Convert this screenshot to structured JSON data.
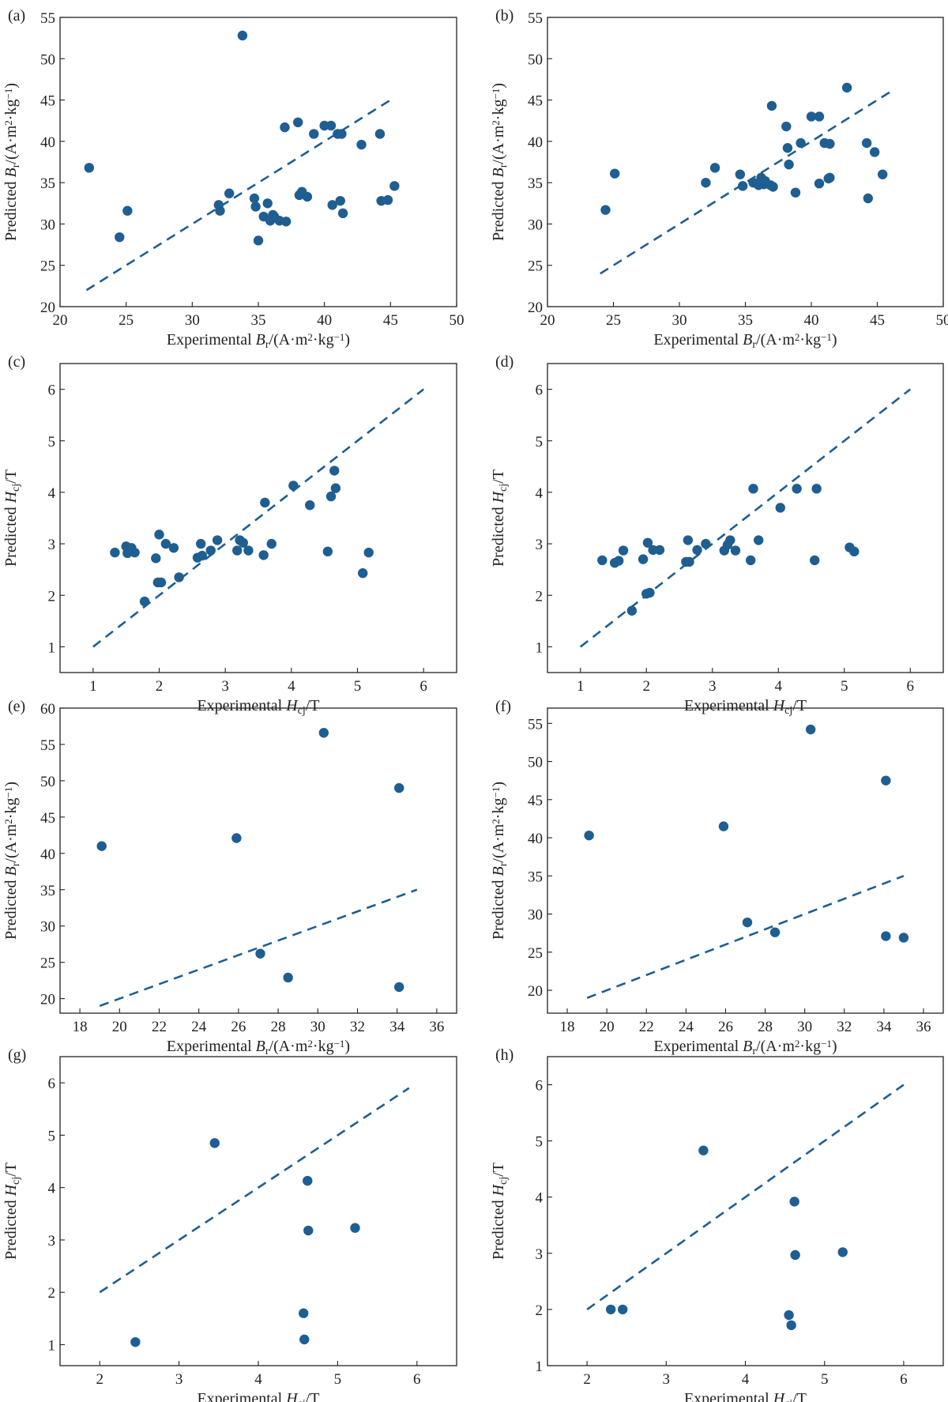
{
  "colors": {
    "points": "#1f5e91",
    "reference_line": "#1f5e91",
    "axes": "#222222"
  },
  "chart_data": [
    {
      "panel_label": "(a)",
      "type": "scatter",
      "xlabel": {
        "pre": "Experimental ",
        "sym": "B",
        "sub": "r",
        "post": "/(A·m",
        "sup1": "2",
        "post2": "·kg",
        "sup2": "−1",
        "post3": ")"
      },
      "ylabel": {
        "pre": "Predicted ",
        "sym": "B",
        "sub": "r",
        "post": "/(A·m",
        "sup1": "2",
        "post2": "·kg",
        "sup2": "−1",
        "post3": ")"
      },
      "xlim": [
        20,
        50
      ],
      "ylim": [
        20,
        55
      ],
      "xticks": [
        20,
        25,
        30,
        35,
        40,
        45,
        50
      ],
      "yticks": [
        20,
        25,
        30,
        35,
        40,
        45,
        50,
        55
      ],
      "reference_line": {
        "x": [
          22,
          45.3
        ],
        "y": [
          22,
          45.3
        ]
      },
      "points": [
        [
          22.2,
          36.8
        ],
        [
          24.5,
          28.4
        ],
        [
          25.1,
          31.6
        ],
        [
          32.0,
          32.3
        ],
        [
          32.1,
          31.6
        ],
        [
          32.8,
          33.7
        ],
        [
          33.8,
          52.8
        ],
        [
          34.7,
          33.1
        ],
        [
          34.8,
          32.1
        ],
        [
          35.0,
          28.0
        ],
        [
          35.4,
          30.9
        ],
        [
          35.7,
          32.5
        ],
        [
          35.9,
          30.4
        ],
        [
          36.1,
          31.1
        ],
        [
          36.2,
          30.9
        ],
        [
          36.6,
          30.4
        ],
        [
          37.0,
          41.7
        ],
        [
          37.1,
          30.3
        ],
        [
          38.0,
          42.3
        ],
        [
          38.1,
          33.5
        ],
        [
          38.3,
          33.9
        ],
        [
          38.7,
          33.3
        ],
        [
          39.2,
          40.9
        ],
        [
          40.0,
          41.9
        ],
        [
          40.5,
          41.9
        ],
        [
          40.6,
          32.3
        ],
        [
          41.0,
          40.9
        ],
        [
          41.2,
          32.8
        ],
        [
          41.3,
          40.9
        ],
        [
          41.4,
          31.3
        ],
        [
          42.8,
          39.6
        ],
        [
          44.2,
          40.9
        ],
        [
          44.3,
          32.8
        ],
        [
          44.8,
          32.9
        ],
        [
          45.3,
          34.6
        ]
      ]
    },
    {
      "panel_label": "(b)",
      "type": "scatter",
      "xlabel": {
        "pre": "Experimental ",
        "sym": "B",
        "sub": "r",
        "post": "/(A·m",
        "sup1": "2",
        "post2": "·kg",
        "sup2": "−1",
        "post3": ")"
      },
      "ylabel": {
        "pre": "Predicted ",
        "sym": "B",
        "sub": "r",
        "post": "/(A·m",
        "sup1": "2",
        "post2": "·kg",
        "sup2": "−1",
        "post3": ")"
      },
      "xlim": [
        20,
        50
      ],
      "ylim": [
        20,
        55
      ],
      "xticks": [
        20,
        25,
        30,
        35,
        40,
        45,
        50
      ],
      "yticks": [
        20,
        25,
        30,
        35,
        40,
        45,
        50,
        55
      ],
      "reference_line": {
        "x": [
          24,
          46
        ],
        "y": [
          24,
          46
        ]
      },
      "points": [
        [
          24.4,
          31.7
        ],
        [
          25.1,
          36.1
        ],
        [
          32.0,
          35.0
        ],
        [
          32.7,
          36.8
        ],
        [
          34.6,
          36.0
        ],
        [
          34.8,
          34.6
        ],
        [
          35.6,
          35.0
        ],
        [
          36.0,
          34.7
        ],
        [
          36.2,
          35.6
        ],
        [
          36.4,
          34.8
        ],
        [
          36.5,
          35.2
        ],
        [
          36.9,
          34.7
        ],
        [
          37.0,
          44.3
        ],
        [
          37.1,
          34.5
        ],
        [
          38.1,
          41.8
        ],
        [
          38.2,
          39.2
        ],
        [
          38.3,
          37.2
        ],
        [
          38.8,
          33.8
        ],
        [
          39.2,
          39.8
        ],
        [
          40.0,
          43.0
        ],
        [
          40.6,
          43.0
        ],
        [
          40.6,
          34.9
        ],
        [
          41.0,
          39.8
        ],
        [
          41.3,
          35.5
        ],
        [
          41.4,
          35.6
        ],
        [
          41.4,
          39.7
        ],
        [
          42.7,
          46.5
        ],
        [
          44.2,
          39.8
        ],
        [
          44.3,
          33.1
        ],
        [
          44.8,
          38.7
        ],
        [
          45.4,
          36.0
        ]
      ]
    },
    {
      "panel_label": "(c)",
      "type": "scatter",
      "xlabel": {
        "pre": "Experimental ",
        "sym": "H",
        "sub": "cj",
        "post": "/T"
      },
      "ylabel": {
        "pre": "Predicted ",
        "sym": "H",
        "sub": "cj",
        "post": "/T"
      },
      "xlim": [
        0.5,
        6.5
      ],
      "ylim": [
        0.5,
        6.5
      ],
      "xticks": [
        1,
        2,
        3,
        4,
        5,
        6
      ],
      "yticks": [
        1,
        2,
        3,
        4,
        5,
        6
      ],
      "reference_line": {
        "x": [
          1,
          6
        ],
        "y": [
          1,
          6
        ]
      },
      "points": [
        [
          1.33,
          2.83
        ],
        [
          1.5,
          2.95
        ],
        [
          1.52,
          2.82
        ],
        [
          1.58,
          2.92
        ],
        [
          1.63,
          2.83
        ],
        [
          1.78,
          1.88
        ],
        [
          1.95,
          2.72
        ],
        [
          1.98,
          2.25
        ],
        [
          2.0,
          3.18
        ],
        [
          2.03,
          2.25
        ],
        [
          2.1,
          3.0
        ],
        [
          2.22,
          2.92
        ],
        [
          2.3,
          2.35
        ],
        [
          2.58,
          2.73
        ],
        [
          2.63,
          3.0
        ],
        [
          2.65,
          2.77
        ],
        [
          2.78,
          2.87
        ],
        [
          2.88,
          3.07
        ],
        [
          3.18,
          2.87
        ],
        [
          3.22,
          3.07
        ],
        [
          3.27,
          3.02
        ],
        [
          3.35,
          2.87
        ],
        [
          3.58,
          2.78
        ],
        [
          3.6,
          3.8
        ],
        [
          3.7,
          3.0
        ],
        [
          4.03,
          4.13
        ],
        [
          4.28,
          3.75
        ],
        [
          4.55,
          2.85
        ],
        [
          4.6,
          3.92
        ],
        [
          4.65,
          4.42
        ],
        [
          4.67,
          4.08
        ],
        [
          5.08,
          2.43
        ],
        [
          5.17,
          2.83
        ]
      ]
    },
    {
      "panel_label": "(d)",
      "type": "scatter",
      "xlabel": {
        "pre": "Experimental ",
        "sym": "H",
        "sub": "cj",
        "post": "/T"
      },
      "ylabel": {
        "pre": "Predicted ",
        "sym": "H",
        "sub": "cj",
        "post": "/T"
      },
      "xlim": [
        0.5,
        6.5
      ],
      "ylim": [
        0.5,
        6.5
      ],
      "xticks": [
        1,
        2,
        3,
        4,
        5,
        6
      ],
      "yticks": [
        1,
        2,
        3,
        4,
        5,
        6
      ],
      "reference_line": {
        "x": [
          1,
          6
        ],
        "y": [
          1,
          6
        ]
      },
      "points": [
        [
          1.33,
          2.68
        ],
        [
          1.52,
          2.63
        ],
        [
          1.58,
          2.67
        ],
        [
          1.65,
          2.87
        ],
        [
          1.78,
          1.7
        ],
        [
          1.95,
          2.7
        ],
        [
          2.0,
          2.03
        ],
        [
          2.02,
          3.02
        ],
        [
          2.05,
          2.05
        ],
        [
          2.1,
          2.88
        ],
        [
          2.2,
          2.88
        ],
        [
          2.6,
          2.65
        ],
        [
          2.63,
          3.07
        ],
        [
          2.65,
          2.65
        ],
        [
          2.77,
          2.88
        ],
        [
          2.9,
          3.0
        ],
        [
          3.18,
          2.87
        ],
        [
          3.23,
          2.98
        ],
        [
          3.27,
          3.07
        ],
        [
          3.35,
          2.87
        ],
        [
          3.58,
          2.68
        ],
        [
          3.62,
          4.07
        ],
        [
          3.7,
          3.07
        ],
        [
          4.03,
          3.7
        ],
        [
          4.28,
          4.07
        ],
        [
          4.55,
          2.68
        ],
        [
          4.58,
          4.07
        ],
        [
          5.08,
          2.93
        ],
        [
          5.15,
          2.85
        ]
      ]
    },
    {
      "panel_label": "(e)",
      "type": "scatter",
      "xlabel": {
        "pre": "Experimental ",
        "sym": "B",
        "sub": "r",
        "post": "/(A·m",
        "sup1": "2",
        "post2": "·kg",
        "sup2": "−1",
        "post3": ")"
      },
      "ylabel": {
        "pre": "Predicted ",
        "sym": "B",
        "sub": "r",
        "post": "/(A·m",
        "sup1": "2",
        "post2": "·kg",
        "sup2": "−1",
        "post3": ")"
      },
      "xlim": [
        17,
        37
      ],
      "ylim": [
        18,
        60
      ],
      "xticks": [
        18,
        20,
        22,
        24,
        26,
        28,
        30,
        32,
        34,
        36
      ],
      "yticks": [
        20,
        25,
        30,
        35,
        40,
        45,
        50,
        55,
        60
      ],
      "reference_line": {
        "x": [
          19,
          35
        ],
        "y": [
          19,
          35
        ]
      },
      "points": [
        [
          19.1,
          41.0
        ],
        [
          25.9,
          42.1
        ],
        [
          27.1,
          26.2
        ],
        [
          28.5,
          22.9
        ],
        [
          30.3,
          56.6
        ],
        [
          34.1,
          49.0
        ],
        [
          34.1,
          21.6
        ]
      ]
    },
    {
      "panel_label": "(f)",
      "type": "scatter",
      "xlabel": {
        "pre": "Experimental ",
        "sym": "B",
        "sub": "r",
        "post": "/(A·m",
        "sup1": "2",
        "post2": "·kg",
        "sup2": "−1",
        "post3": ")"
      },
      "ylabel": {
        "pre": "Predicted ",
        "sym": "B",
        "sub": "r",
        "post": "/(A·m",
        "sup1": "2",
        "post2": "·kg",
        "sup2": "−1",
        "post3": ")"
      },
      "xlim": [
        17,
        37
      ],
      "ylim": [
        17,
        57
      ],
      "xticks": [
        18,
        20,
        22,
        24,
        26,
        28,
        30,
        32,
        34,
        36
      ],
      "yticks": [
        20,
        25,
        30,
        35,
        40,
        45,
        50,
        55
      ],
      "reference_line": {
        "x": [
          19,
          35
        ],
        "y": [
          19,
          35
        ]
      },
      "points": [
        [
          19.1,
          40.3
        ],
        [
          25.9,
          41.5
        ],
        [
          27.1,
          28.9
        ],
        [
          28.5,
          27.6
        ],
        [
          30.3,
          54.2
        ],
        [
          34.1,
          47.5
        ],
        [
          34.1,
          27.1
        ],
        [
          35.0,
          26.9
        ]
      ]
    },
    {
      "panel_label": "(g)",
      "type": "scatter",
      "xlabel": {
        "pre": "Experimental ",
        "sym": "H",
        "sub": "cj",
        "post": "/T"
      },
      "ylabel": {
        "pre": "Predicted ",
        "sym": "H",
        "sub": "cj",
        "post": "/T"
      },
      "xlim": [
        1.5,
        6.5
      ],
      "ylim": [
        0.6,
        6.5
      ],
      "xticks": [
        2,
        3,
        4,
        5,
        6
      ],
      "yticks": [
        1,
        2,
        3,
        4,
        5,
        6
      ],
      "reference_line": {
        "x": [
          2,
          5.9
        ],
        "y": [
          2,
          5.9
        ]
      },
      "points": [
        [
          2.45,
          1.05
        ],
        [
          3.45,
          4.85
        ],
        [
          4.57,
          1.6
        ],
        [
          4.58,
          1.1
        ],
        [
          4.62,
          4.13
        ],
        [
          4.63,
          3.18
        ],
        [
          5.22,
          3.23
        ]
      ]
    },
    {
      "panel_label": "(h)",
      "type": "scatter",
      "xlabel": {
        "pre": "Experimental ",
        "sym": "H",
        "sub": "cj",
        "post": "/T"
      },
      "ylabel": {
        "pre": "Predicted ",
        "sym": "H",
        "sub": "cj",
        "post": "/T"
      },
      "xlim": [
        1.5,
        6.5
      ],
      "ylim": [
        1.0,
        6.5
      ],
      "xticks": [
        2,
        3,
        4,
        5,
        6
      ],
      "yticks": [
        1,
        2,
        3,
        4,
        5,
        6
      ],
      "reference_line": {
        "x": [
          2,
          6
        ],
        "y": [
          2,
          6
        ]
      },
      "points": [
        [
          2.3,
          2.0
        ],
        [
          2.45,
          2.0
        ],
        [
          3.47,
          4.83
        ],
        [
          4.55,
          1.9
        ],
        [
          4.58,
          1.72
        ],
        [
          4.62,
          3.92
        ],
        [
          4.63,
          2.97
        ],
        [
          5.23,
          3.02
        ]
      ]
    }
  ]
}
